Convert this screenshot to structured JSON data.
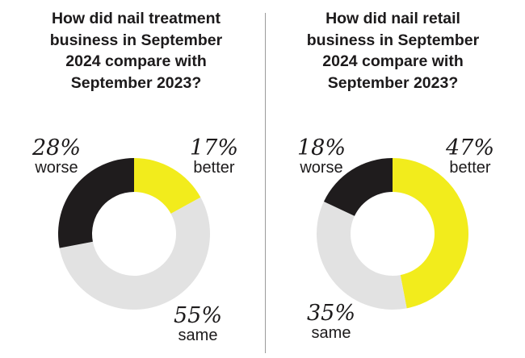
{
  "chart_data": [
    {
      "type": "pie",
      "title": "How did nail treatment business in September 2024 compare with September 2023?",
      "categories": [
        "better",
        "same",
        "worse"
      ],
      "values": [
        17,
        55,
        28
      ],
      "labels": [
        "17%",
        "55%",
        "28%"
      ]
    },
    {
      "type": "pie",
      "title": "How did nail retail business in September 2024 compare with September 2023?",
      "categories": [
        "better",
        "same",
        "worse"
      ],
      "values": [
        47,
        35,
        18
      ],
      "labels": [
        "47%",
        "35%",
        "18%"
      ]
    }
  ],
  "colors": {
    "better": "#f2ec1c",
    "same": "#e2e2e2",
    "worse": "#1f1c1d"
  }
}
